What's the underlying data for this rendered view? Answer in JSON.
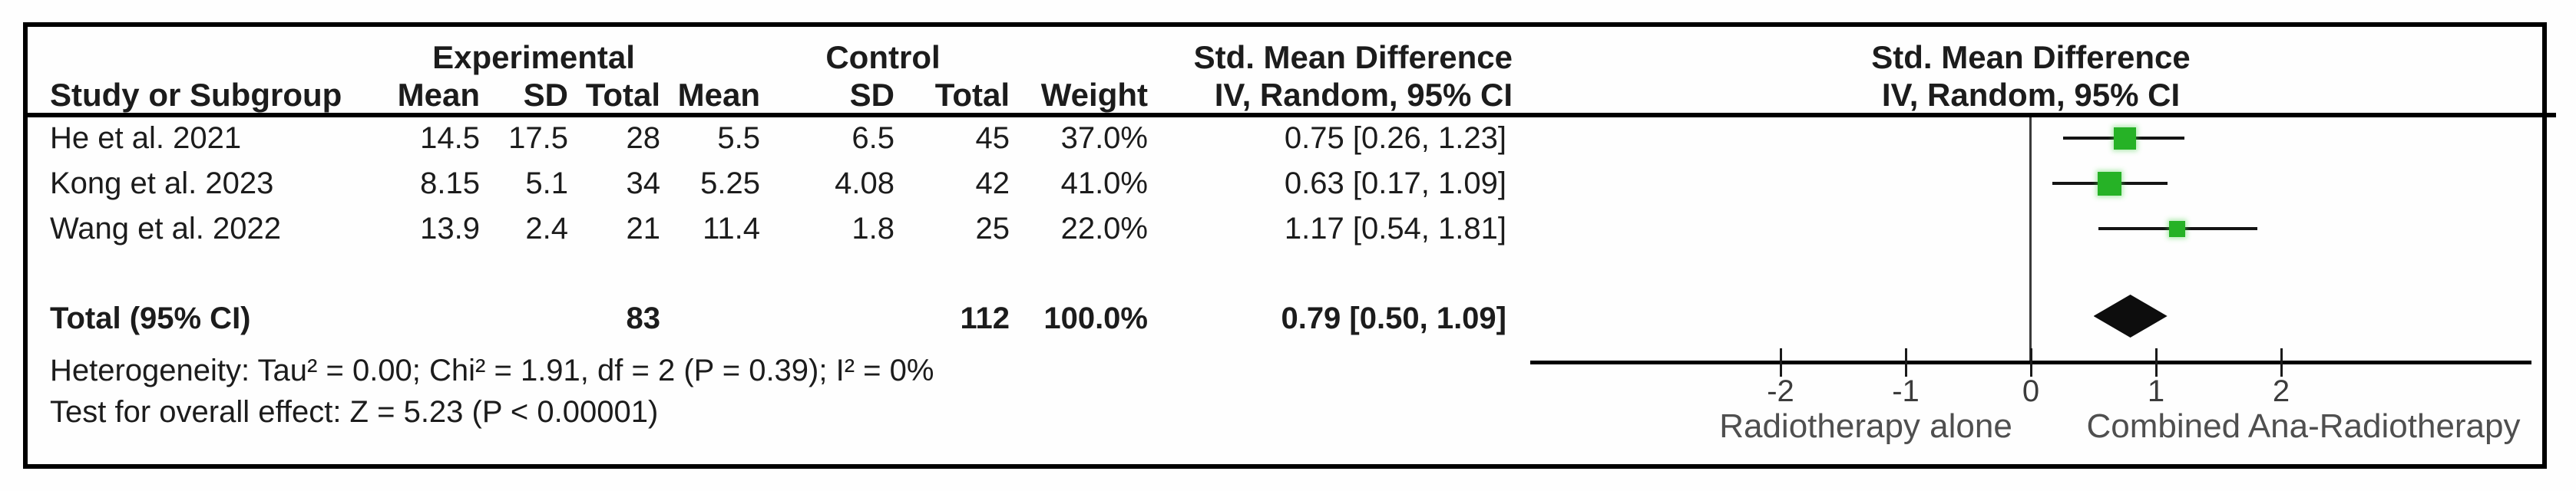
{
  "figure_title": "Forest plot — Std. Mean Difference (IV, Random, 95% CI)",
  "table": {
    "group_headers": {
      "experimental": "Experimental",
      "control": "Control",
      "smd": "Std. Mean Difference"
    },
    "column_headers": {
      "study": "Study or Subgroup",
      "exp_mean": "Mean",
      "exp_sd": "SD",
      "exp_total": "Total",
      "ctl_mean": "Mean",
      "ctl_sd": "SD",
      "ctl_total": "Total",
      "weight": "Weight",
      "ci": "IV, Random, 95% CI"
    }
  },
  "plot_header": {
    "line1": "Std. Mean Difference",
    "line2": "IV, Random, 95% CI"
  },
  "footer": {
    "heterogeneity": "Heterogeneity: Tau² = 0.00; Chi² = 1.91, df = 2 (P = 0.39); I² = 0%",
    "overall_effect": "Test for overall effect: Z = 5.23 (P < 0.00001)"
  },
  "chart_data": {
    "type": "forest",
    "effect_measure": "Std. Mean Difference",
    "method": "IV, Random, 95% CI",
    "studies": [
      {
        "name": "He et al. 2021",
        "exp_mean": "14.5",
        "exp_sd": "17.5",
        "exp_total": "28",
        "ctl_mean": "5.5",
        "ctl_sd": "6.5",
        "ctl_total": "45",
        "weight": "37.0%",
        "weight_pct": 37.0,
        "ci_text": "0.75 [0.26, 1.23]",
        "smd": 0.75,
        "ci_low": 0.26,
        "ci_high": 1.23
      },
      {
        "name": "Kong et al. 2023",
        "exp_mean": "8.15",
        "exp_sd": "5.1",
        "exp_total": "34",
        "ctl_mean": "5.25",
        "ctl_sd": "4.08",
        "ctl_total": "42",
        "weight": "41.0%",
        "weight_pct": 41.0,
        "ci_text": "0.63 [0.17, 1.09]",
        "smd": 0.63,
        "ci_low": 0.17,
        "ci_high": 1.09
      },
      {
        "name": "Wang et al. 2022",
        "exp_mean": "13.9",
        "exp_sd": "2.4",
        "exp_total": "21",
        "ctl_mean": "11.4",
        "ctl_sd": "1.8",
        "ctl_total": "25",
        "weight": "22.0%",
        "weight_pct": 22.0,
        "ci_text": "1.17 [0.54, 1.81]",
        "smd": 1.17,
        "ci_low": 0.54,
        "ci_high": 1.81
      }
    ],
    "total": {
      "label": "Total (95% CI)",
      "exp_total": "83",
      "ctl_total": "112",
      "weight": "100.0%",
      "ci_text": "0.79 [0.50, 1.09]",
      "smd": 0.79,
      "ci_low": 0.5,
      "ci_high": 1.09
    },
    "axis": {
      "ticks": [
        -2,
        -1,
        0,
        1,
        2
      ],
      "range": [
        -4,
        4
      ],
      "left_label": "Radiotherapy alone",
      "right_label": "Combined Ana-Radiotherapy"
    },
    "marker_color": "#26b226",
    "diamond_color": "#0d0d0d"
  }
}
